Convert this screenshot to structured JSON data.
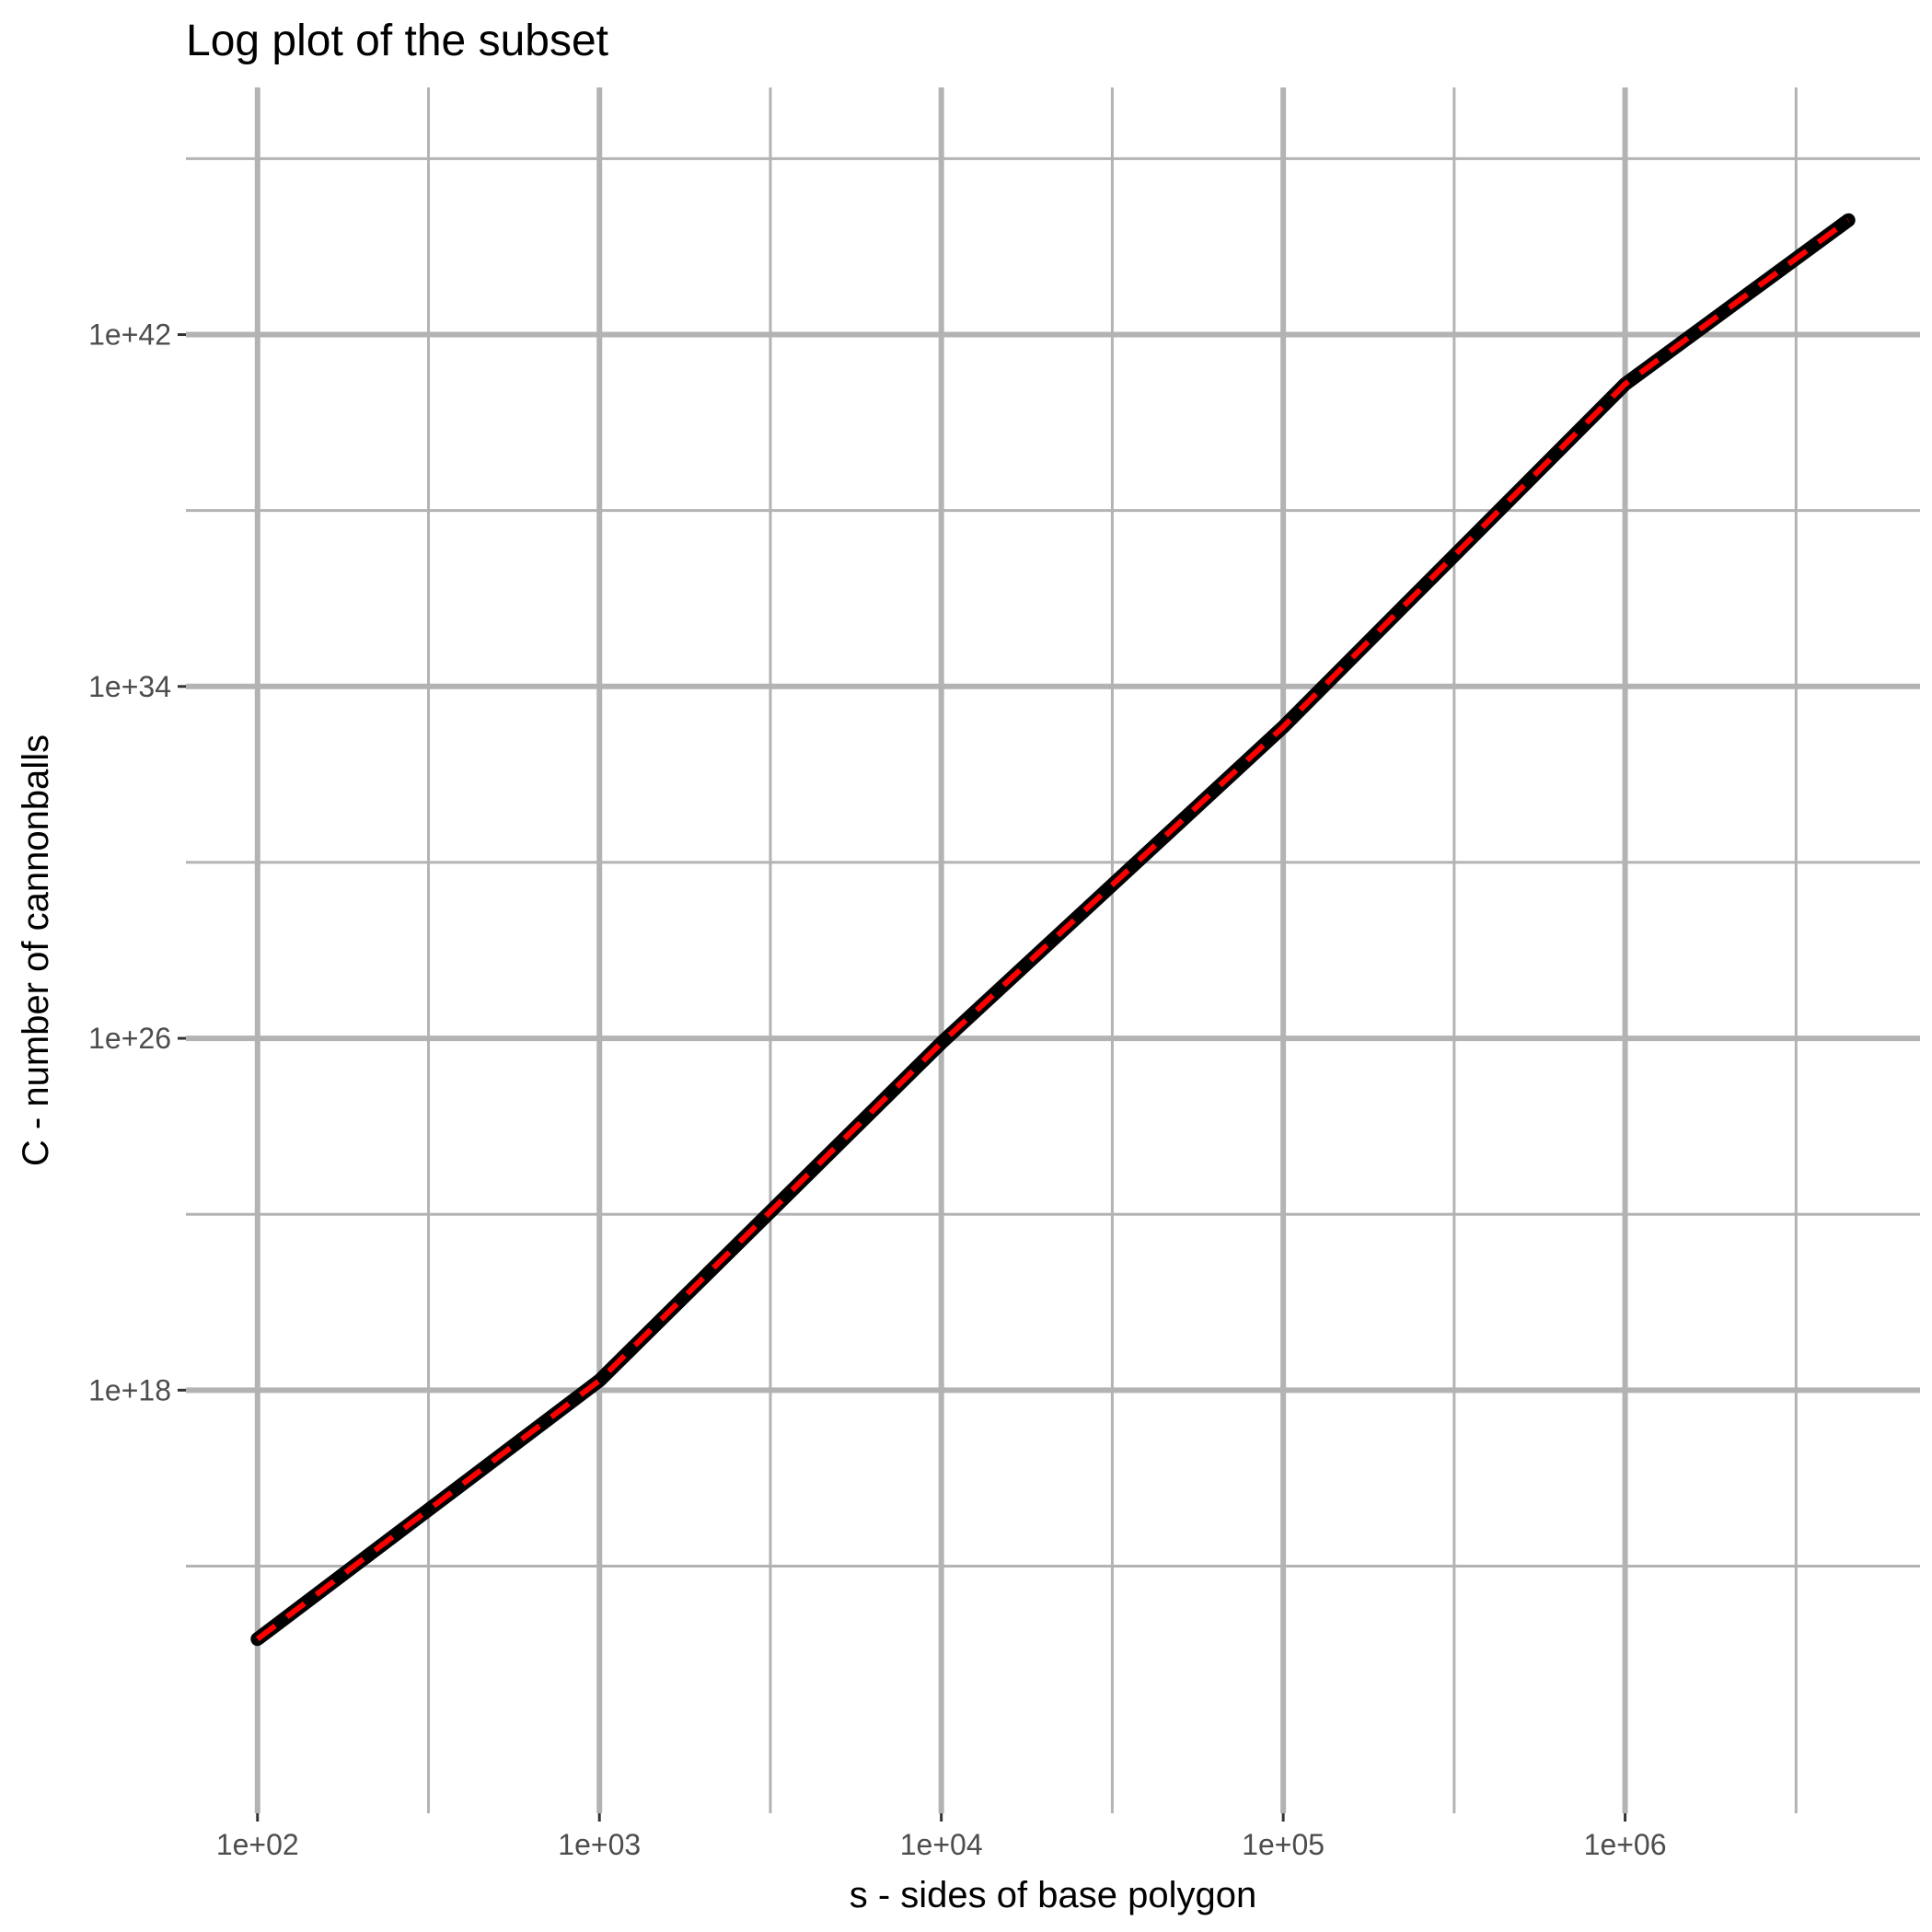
{
  "chart_data": {
    "type": "line",
    "title": "Log plot of the subset",
    "xlabel": "s - sides of base polygon",
    "ylabel": "C - number of cannonballs",
    "x_scale": "log10",
    "y_scale": "log10",
    "xlim": [
      100,
      4500000
    ],
    "ylim": [
      10000000000.0,
      1e+46
    ],
    "x_ticks": [
      {
        "value": 100,
        "label": "1e+02"
      },
      {
        "value": 1000,
        "label": "1e+03"
      },
      {
        "value": 10000,
        "label": "1e+04"
      },
      {
        "value": 100000,
        "label": "1e+05"
      },
      {
        "value": 1000000,
        "label": "1e+06"
      }
    ],
    "y_ticks": [
      {
        "value": 1e+18,
        "label": "1e+18"
      },
      {
        "value": 1e+26,
        "label": "1e+26"
      },
      {
        "value": 1e+34,
        "label": "1e+34"
      },
      {
        "value": 1e+42,
        "label": "1e+42"
      }
    ],
    "grid": true,
    "background": "#ffffff",
    "grid_color": "#b3b3b3",
    "series": [
      {
        "style": "solid",
        "color": "#000000",
        "x": [
          100,
          1000,
          10000,
          100000,
          1000000,
          4500000
        ],
        "y": [
          2200000000000.0,
          1.65e+18,
          7.9e+25,
          1.2e+33,
          7.5e+40,
          4e+44
        ]
      },
      {
        "style": "dashed",
        "color": "#ff0000",
        "x": [
          100,
          1000,
          10000,
          100000,
          1000000,
          4500000
        ],
        "y": [
          2200000000000.0,
          1.65e+18,
          7.9e+25,
          1.2e+33,
          7.5e+40,
          4e+44
        ]
      }
    ]
  }
}
